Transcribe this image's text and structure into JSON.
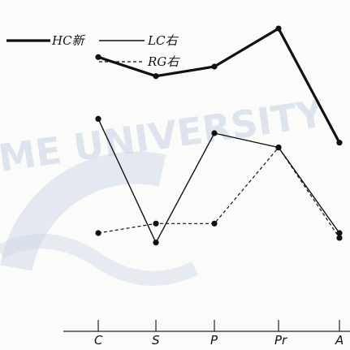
{
  "chart_data": {
    "type": "line",
    "categories": [
      "C",
      "S",
      "P",
      "Pr",
      "A"
    ],
    "series": [
      {
        "name": "HC新",
        "values": [
          5.8,
          5.4,
          5.6,
          6.4,
          4.0
        ],
        "style": "thick"
      },
      {
        "name": "LC右",
        "values": [
          4.5,
          1.9,
          4.2,
          3.9,
          2.1
        ],
        "style": "solid"
      },
      {
        "name": "RG右",
        "values": [
          2.1,
          2.3,
          2.3,
          3.9,
          2.0
        ],
        "style": "dashed"
      }
    ],
    "ylim": [
      0,
      7
    ],
    "legend_position": "top-left",
    "grid": false
  },
  "watermark": {
    "text": "ME UNIVERSITY",
    "color": "#c7d3e6"
  }
}
